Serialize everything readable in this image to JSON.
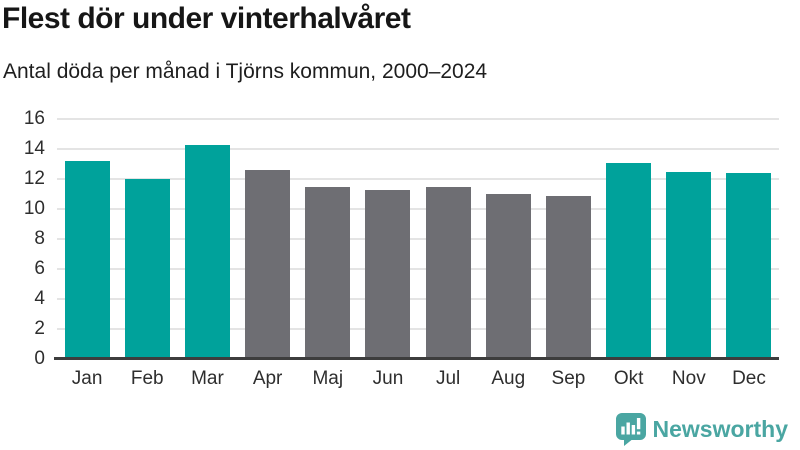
{
  "header": {
    "title": "Flest dör under vinterhalvåret",
    "subtitle": "Antal döda per månad i Tjörns kommun, 2000–2024"
  },
  "chart_data": {
    "type": "bar",
    "title": "Flest dör under vinterhalvåret",
    "subtitle": "Antal döda per månad i Tjörns kommun, 2000–2024",
    "categories": [
      "Jan",
      "Feb",
      "Mar",
      "Apr",
      "Maj",
      "Jun",
      "Jul",
      "Aug",
      "Sep",
      "Okt",
      "Nov",
      "Dec"
    ],
    "values": [
      13.2,
      12.0,
      14.3,
      12.6,
      11.5,
      11.3,
      11.5,
      11.0,
      10.9,
      13.1,
      12.5,
      12.4
    ],
    "bar_colors": [
      "teal",
      "teal",
      "teal",
      "gray",
      "gray",
      "gray",
      "gray",
      "gray",
      "gray",
      "teal",
      "teal",
      "teal"
    ],
    "colors": {
      "teal": "#00a29b",
      "gray": "#6e6e73"
    },
    "xlabel": "",
    "ylabel": "",
    "ylim": [
      0,
      16
    ],
    "yticks": [
      0,
      2,
      4,
      6,
      8,
      10,
      12,
      14,
      16
    ],
    "grid": true,
    "legend": false
  },
  "footer": {
    "logo_text": "Newsworthy",
    "logo_color": "#4aa6a2"
  }
}
